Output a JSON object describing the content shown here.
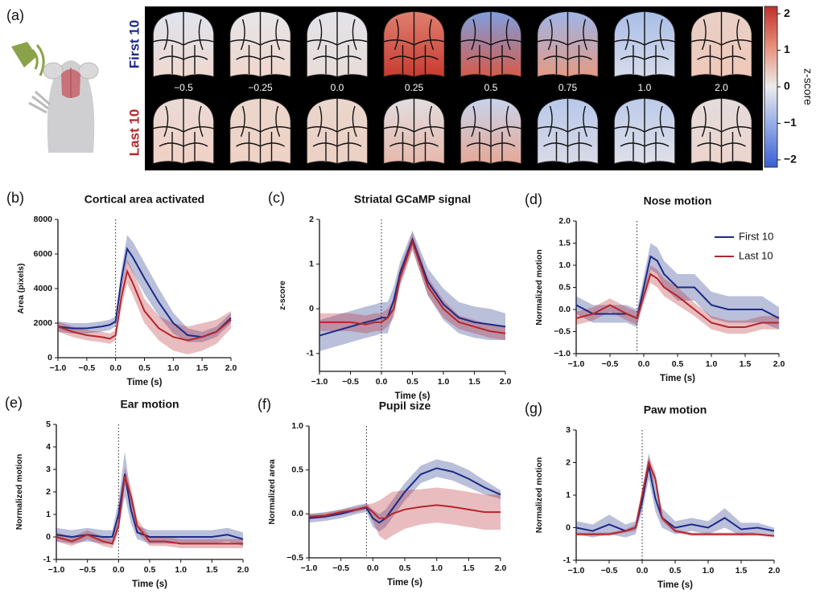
{
  "panel_a": {
    "label": "(a)",
    "rows": [
      "First 10",
      "Last 10"
    ],
    "times": [
      "−0.5",
      "−0.25",
      "0.0",
      "0.25",
      "0.5",
      "0.75",
      "1.0",
      "2.0"
    ],
    "colorbar": {
      "label": "z-score",
      "lim": [
        -2.2,
        2.2
      ],
      "ticks": [
        2,
        1,
        0,
        {
          "value": -1,
          "label": "−1"
        },
        {
          "value": -2,
          "label": "−2"
        }
      ]
    }
  },
  "chart_data": [
    {
      "type": "line",
      "label": "(b)",
      "title": "Cortical area activated",
      "xlabel": "Time (s)",
      "ylabel": "Area (pixels)",
      "x": [
        -1,
        -0.75,
        -0.5,
        -0.25,
        -0.1,
        0,
        0.1,
        0.2,
        0.3,
        0.5,
        0.75,
        1,
        1.25,
        1.5,
        1.75,
        2
      ],
      "event_time": 0,
      "xlim": [
        -1,
        2
      ],
      "xticks": [
        {
          "value": -1,
          "label": "−1.0"
        },
        {
          "value": -0.5,
          "label": "−0.5"
        },
        {
          "value": 0,
          "label": "0.0"
        },
        {
          "value": 0.5,
          "label": "0.5"
        },
        {
          "value": 1,
          "label": "1.0"
        },
        {
          "value": 1.5,
          "label": "1.5"
        },
        {
          "value": 2,
          "label": "2.0"
        }
      ],
      "ylim": [
        0,
        8000
      ],
      "yticks": [
        0,
        2000,
        4000,
        6000,
        8000
      ],
      "series": [
        {
          "color": "#1c2a86",
          "values": [
            1800,
            1700,
            1700,
            1800,
            1900,
            2100,
            4500,
            6300,
            5800,
            4600,
            3200,
            2000,
            1300,
            1200,
            1500,
            2300
          ],
          "error": [
            300,
            300,
            300,
            300,
            300,
            300,
            600,
            800,
            900,
            900,
            800,
            600,
            400,
            300,
            300,
            300
          ]
        },
        {
          "color": "#b5262b",
          "values": [
            1800,
            1500,
            1300,
            1200,
            1100,
            1300,
            3500,
            5000,
            4300,
            2700,
            1700,
            1200,
            1000,
            1200,
            1500,
            2200
          ],
          "error": [
            300,
            300,
            300,
            300,
            300,
            300,
            600,
            700,
            700,
            700,
            700,
            800,
            800,
            800,
            700,
            500
          ]
        }
      ]
    },
    {
      "type": "line",
      "label": "(c)",
      "title": "Striatal GCaMP signal",
      "xlabel": "Time (s)",
      "ylabel": "z-score",
      "x": [
        -1,
        -0.75,
        -0.5,
        -0.25,
        -0.1,
        0,
        0.1,
        0.2,
        0.3,
        0.5,
        0.75,
        1,
        1.25,
        1.5,
        1.75,
        2
      ],
      "event_time": 0,
      "xlim": [
        -1,
        2
      ],
      "xticks": [
        {
          "value": -1,
          "label": "−1.0"
        },
        {
          "value": -0.5,
          "label": "−0.5"
        },
        {
          "value": 0,
          "label": "0.0"
        },
        {
          "value": 0.5,
          "label": "0.5"
        },
        {
          "value": 1,
          "label": "1.0"
        },
        {
          "value": 1.5,
          "label": "1.5"
        },
        {
          "value": 2,
          "label": "2.0"
        }
      ],
      "ylim": [
        -1.4,
        2
      ],
      "yticks": [
        -1,
        0,
        1,
        2
      ],
      "series": [
        {
          "color": "#1c2a86",
          "values": [
            -0.6,
            -0.5,
            -0.4,
            -0.3,
            -0.25,
            -0.2,
            -0.2,
            0.2,
            0.8,
            1.55,
            0.6,
            0.1,
            -0.2,
            -0.3,
            -0.35,
            -0.4
          ],
          "error": [
            0.35,
            0.35,
            0.35,
            0.35,
            0.35,
            0.35,
            0.35,
            0.3,
            0.25,
            0.2,
            0.3,
            0.35,
            0.35,
            0.35,
            0.35,
            0.3
          ]
        },
        {
          "color": "#b5262b",
          "values": [
            -0.3,
            -0.3,
            -0.3,
            -0.35,
            -0.3,
            -0.3,
            -0.2,
            0,
            0.7,
            1.5,
            0.5,
            0,
            -0.3,
            -0.4,
            -0.5,
            -0.55
          ],
          "error": [
            0.2,
            0.2,
            0.2,
            0.2,
            0.2,
            0.2,
            0.2,
            0.2,
            0.2,
            0.2,
            0.2,
            0.2,
            0.15,
            0.15,
            0.15,
            0.15
          ]
        }
      ]
    },
    {
      "type": "line",
      "label": "(d)",
      "title": "Nose motion",
      "xlabel": "Time (s)",
      "ylabel": "Normalized motion",
      "x": [
        -1,
        -0.75,
        -0.5,
        -0.25,
        -0.1,
        0,
        0.1,
        0.2,
        0.3,
        0.5,
        0.75,
        1,
        1.25,
        1.5,
        1.75,
        2
      ],
      "event_time": -0.1,
      "legend": "upper right",
      "xlim": [
        -1,
        2
      ],
      "xticks": [
        {
          "value": -1,
          "label": "−1.0"
        },
        {
          "value": -0.5,
          "label": "−0.5"
        },
        {
          "value": 0,
          "label": "0.0"
        },
        {
          "value": 0.5,
          "label": "0.5"
        },
        {
          "value": 1,
          "label": "1.0"
        },
        {
          "value": 1.5,
          "label": "1.5"
        },
        {
          "value": 2,
          "label": "2.0"
        }
      ],
      "ylim": [
        -1,
        2
      ],
      "yticks": [
        {
          "value": -1,
          "label": "−1.0"
        },
        {
          "value": -0.5,
          "label": "−0.5"
        },
        {
          "value": 0,
          "label": "0.0"
        },
        {
          "value": 0.5,
          "label": "0.5"
        },
        {
          "value": 1,
          "label": "1.0"
        },
        {
          "value": 1.5,
          "label": "1.5"
        },
        {
          "value": 2,
          "label": "2.0"
        }
      ],
      "series": [
        {
          "name": "First 10",
          "color": "#1c2a86",
          "values": [
            0.1,
            -0.1,
            -0.1,
            -0.1,
            -0.2,
            0.5,
            1.2,
            1.1,
            0.8,
            0.5,
            0.5,
            0.1,
            0,
            0,
            0,
            -0.2
          ],
          "error": [
            0.2,
            0.2,
            0.2,
            0.2,
            0.2,
            0.25,
            0.3,
            0.3,
            0.3,
            0.3,
            0.3,
            0.3,
            0.3,
            0.3,
            0.3,
            0.25
          ]
        },
        {
          "name": "Last 10",
          "color": "#b5262b",
          "values": [
            -0.2,
            -0.1,
            0.1,
            -0.1,
            -0.2,
            0.3,
            0.8,
            0.7,
            0.5,
            0.3,
            0,
            -0.3,
            -0.4,
            -0.4,
            -0.3,
            -0.3
          ],
          "error": [
            0.15,
            0.15,
            0.15,
            0.15,
            0.15,
            0.15,
            0.2,
            0.2,
            0.2,
            0.2,
            0.15,
            0.15,
            0.15,
            0.15,
            0.15,
            0.15
          ]
        }
      ]
    },
    {
      "type": "line",
      "label": "(e)",
      "title": "Ear motion",
      "xlabel": "Time (s)",
      "ylabel": "Normalized motion",
      "x": [
        -1,
        -0.75,
        -0.5,
        -0.25,
        -0.1,
        0,
        0.1,
        0.2,
        0.3,
        0.5,
        0.75,
        1,
        1.25,
        1.5,
        1.75,
        2
      ],
      "event_time": 0,
      "xlim": [
        -1,
        2
      ],
      "xticks": [
        {
          "value": -1,
          "label": "−1.0"
        },
        {
          "value": -0.5,
          "label": "−0.5"
        },
        {
          "value": 0,
          "label": "0.0"
        },
        {
          "value": 0.5,
          "label": "0.5"
        },
        {
          "value": 1,
          "label": "1.0"
        },
        {
          "value": 1.5,
          "label": "1.5"
        },
        {
          "value": 2,
          "label": "2.0"
        }
      ],
      "ylim": [
        -1,
        5
      ],
      "yticks": [
        -1,
        0,
        1,
        2,
        3,
        4,
        5
      ],
      "series": [
        {
          "color": "#1c2a86",
          "values": [
            0.1,
            0,
            0.1,
            0,
            0,
            1,
            2.8,
            1.2,
            0.2,
            0,
            0,
            0,
            0,
            0,
            0.1,
            -0.1
          ],
          "error": [
            0.3,
            0.3,
            0.3,
            0.3,
            0.3,
            0.6,
            1,
            0.6,
            0.3,
            0.3,
            0.3,
            0.3,
            0.3,
            0.3,
            0.3,
            0.3
          ]
        },
        {
          "color": "#b5262b",
          "values": [
            0,
            -0.2,
            0.1,
            -0.2,
            -0.3,
            0.5,
            2.7,
            1.8,
            0.5,
            -0.2,
            -0.2,
            -0.3,
            -0.3,
            -0.3,
            -0.3,
            -0.3
          ],
          "error": [
            0.2,
            0.2,
            0.2,
            0.2,
            0.2,
            0.3,
            0.4,
            0.4,
            0.3,
            0.2,
            0.2,
            0.2,
            0.2,
            0.2,
            0.2,
            0.2
          ]
        }
      ]
    },
    {
      "type": "line",
      "label": "(f)",
      "title": "Pupil size",
      "xlabel": "Time (s)",
      "ylabel": "Normalized area",
      "x": [
        -1,
        -0.75,
        -0.5,
        -0.25,
        -0.1,
        0,
        0.1,
        0.2,
        0.3,
        0.5,
        0.75,
        1,
        1.25,
        1.5,
        1.75,
        2
      ],
      "event_time": -0.1,
      "xlim": [
        -1,
        2
      ],
      "xticks": [
        {
          "value": -1,
          "label": "−1.0"
        },
        {
          "value": -0.5,
          "label": "−0.5"
        },
        {
          "value": 0,
          "label": "0.0"
        },
        {
          "value": 0.5,
          "label": "0.5"
        },
        {
          "value": 1,
          "label": "1.0"
        },
        {
          "value": 1.5,
          "label": "1.5"
        },
        {
          "value": 2,
          "label": "2.0"
        }
      ],
      "ylim": [
        -0.5,
        1
      ],
      "yticks": [
        {
          "value": -0.5,
          "label": "−0.5"
        },
        {
          "value": 0,
          "label": "0.0"
        },
        {
          "value": 0.5,
          "label": "0.5"
        },
        {
          "value": 1,
          "label": "1.0"
        }
      ],
      "series": [
        {
          "color": "#1c2a86",
          "values": [
            -0.05,
            -0.03,
            0,
            0.05,
            0.07,
            -0.05,
            -0.1,
            -0.05,
            0.05,
            0.25,
            0.45,
            0.52,
            0.48,
            0.4,
            0.3,
            0.22
          ],
          "error": [
            0.05,
            0.05,
            0.05,
            0.05,
            0.05,
            0.1,
            0.1,
            0.1,
            0.1,
            0.1,
            0.1,
            0.1,
            0.1,
            0.1,
            0.08,
            0.05
          ]
        },
        {
          "color": "#b5262b",
          "values": [
            -0.03,
            -0.02,
            0.02,
            0.05,
            0.08,
            0.02,
            -0.05,
            -0.05,
            0,
            0.05,
            0.08,
            0.1,
            0.08,
            0.05,
            0.02,
            0.02
          ],
          "error": [
            0.03,
            0.03,
            0.03,
            0.03,
            0.03,
            0.1,
            0.2,
            0.25,
            0.25,
            0.22,
            0.2,
            0.2,
            0.2,
            0.2,
            0.2,
            0.2
          ]
        }
      ]
    },
    {
      "type": "line",
      "label": "(g)",
      "title": "Paw motion",
      "xlabel": "Time (s)",
      "ylabel": "Normalized motion",
      "x": [
        -1,
        -0.75,
        -0.5,
        -0.25,
        -0.1,
        0,
        0.1,
        0.2,
        0.3,
        0.5,
        0.75,
        1,
        1.25,
        1.5,
        1.75,
        2
      ],
      "event_time": 0,
      "xlim": [
        -1,
        2
      ],
      "xticks": [
        {
          "value": -1,
          "label": "−1.0"
        },
        {
          "value": -0.5,
          "label": "−0.5"
        },
        {
          "value": 0,
          "label": "0.0"
        },
        {
          "value": 0.5,
          "label": "0.5"
        },
        {
          "value": 1,
          "label": "1.0"
        },
        {
          "value": 1.5,
          "label": "1.5"
        },
        {
          "value": 2,
          "label": "2.0"
        }
      ],
      "ylim": [
        -1,
        3
      ],
      "yticks": [
        -1,
        0,
        1,
        2,
        3
      ],
      "series": [
        {
          "color": "#1c2a86",
          "values": [
            0,
            -0.1,
            0.1,
            -0.1,
            0,
            0.8,
            1.9,
            0.9,
            0.3,
            0,
            0.1,
            0,
            0.3,
            -0.05,
            0,
            -0.1
          ],
          "error": [
            0.2,
            0.2,
            0.3,
            0.2,
            0.2,
            0.3,
            0.4,
            0.4,
            0.3,
            0.2,
            0.2,
            0.2,
            0.3,
            0.2,
            0.15,
            0.1
          ]
        },
        {
          "color": "#b5262b",
          "values": [
            -0.2,
            -0.2,
            -0.2,
            -0.1,
            0,
            1,
            2,
            1.5,
            0.3,
            -0.1,
            -0.2,
            -0.2,
            -0.2,
            -0.2,
            -0.2,
            -0.25
          ],
          "error": [
            0.05,
            0.05,
            0.05,
            0.05,
            0.1,
            0.2,
            0.2,
            0.2,
            0.1,
            0.05,
            0.05,
            0.05,
            0.05,
            0.05,
            0.05,
            0.05
          ]
        }
      ]
    }
  ]
}
